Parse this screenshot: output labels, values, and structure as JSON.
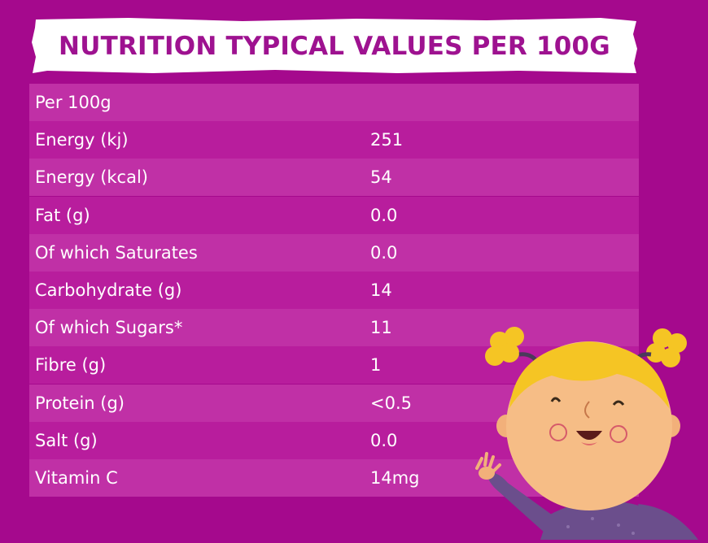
{
  "header": {
    "title": "NUTRITION TYPICAL VALUES PER 100G"
  },
  "table": {
    "rows": [
      {
        "label": "Per 100g",
        "value": ""
      },
      {
        "label": "Energy (kj)",
        "value": "251"
      },
      {
        "label": "Energy (kcal)",
        "value": "54"
      },
      {
        "label": "Fat (g)",
        "value": "0.0"
      },
      {
        "label": "Of which Saturates",
        "value": "0.0"
      },
      {
        "label": "Carbohydrate (g)",
        "value": "14"
      },
      {
        "label": "Of which Sugars*",
        "value": "11"
      },
      {
        "label": "Fibre (g)",
        "value": "1"
      },
      {
        "label": "Protein (g)",
        "value": "<0.5"
      },
      {
        "label": "Salt (g)",
        "value": "0.0"
      },
      {
        "label": "Vitamin C",
        "value": "14mg"
      }
    ]
  },
  "colors": {
    "background": "#a5098d",
    "banner": "#ffffff",
    "title_text": "#9e1290",
    "row_light": "#c030a6",
    "row_dark": "#b81d9d",
    "row_text": "#ffffff"
  },
  "mascot": {
    "icon": "girl-mascot-illustration"
  }
}
